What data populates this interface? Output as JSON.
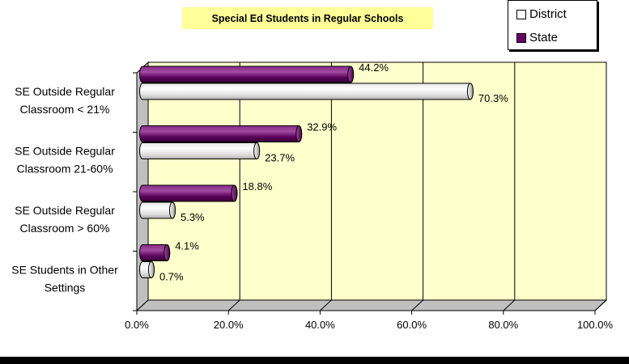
{
  "chart_data": {
    "type": "bar",
    "orientation": "horizontal",
    "title": "Special Ed Students in Regular Schools",
    "categories": [
      [
        "SE Outside Regular",
        "Classroom < 21%"
      ],
      [
        "SE Outside Regular",
        "Classroom  21-60%"
      ],
      [
        "SE Outside Regular",
        "Classroom > 60%"
      ],
      [
        "SE Students in Other",
        "Settings"
      ]
    ],
    "series": [
      {
        "name": "State",
        "values": [
          44.2,
          32.9,
          18.8,
          4.1
        ],
        "labels": [
          "44.2%",
          "32.9%",
          "18.8%",
          "4.1%"
        ],
        "color": "#660066"
      },
      {
        "name": "District",
        "values": [
          70.3,
          23.7,
          5.3,
          0.7
        ],
        "labels": [
          "70.3%",
          "23.7%",
          "5.3%",
          "0.7%"
        ],
        "color": "#ffffff"
      }
    ],
    "xlim": [
      0,
      100
    ],
    "xticks": [
      "0.0%",
      "20.0%",
      "40.0%",
      "60.0%",
      "80.0%",
      "100.0%"
    ],
    "grid": true,
    "plot_background": "#ffffcc",
    "legend_position": "top-right"
  },
  "legend": {
    "district_label": "District",
    "state_label": "State"
  }
}
